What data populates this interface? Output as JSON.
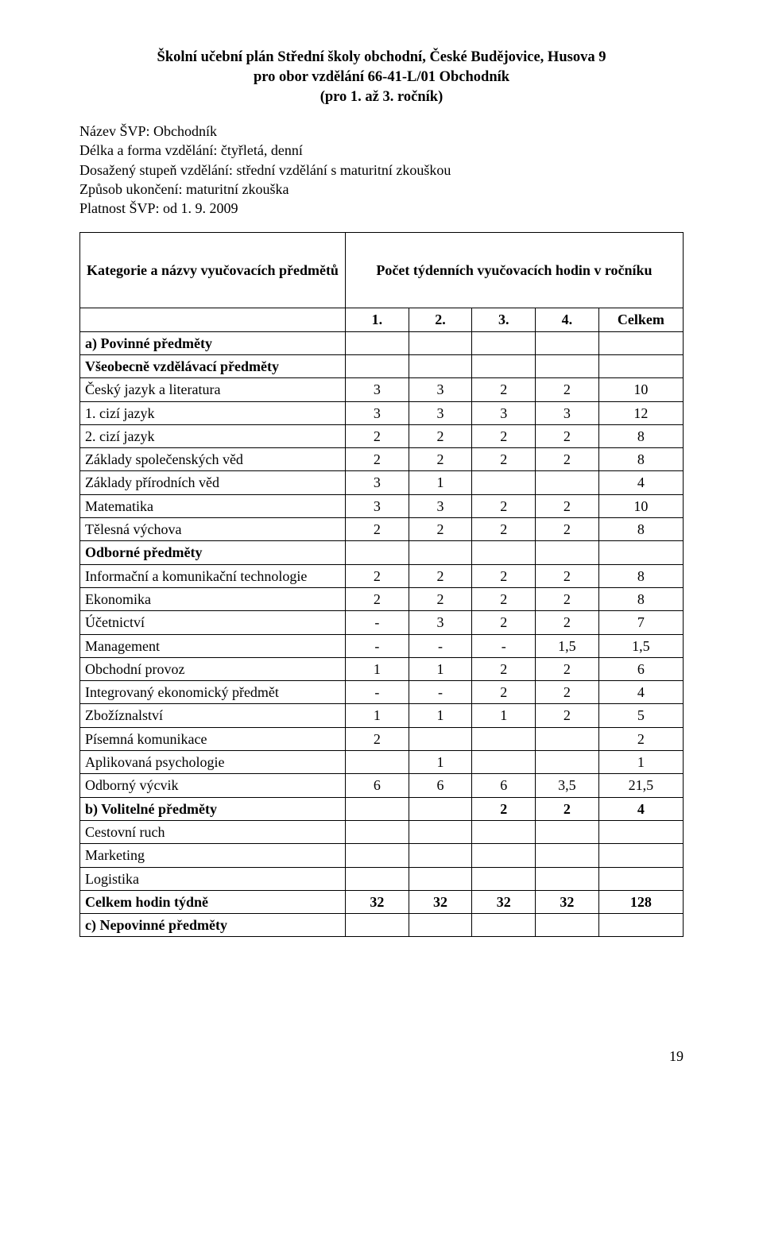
{
  "title": {
    "line1": "Školní učební plán Střední školy obchodní, České Budějovice, Husova 9",
    "line2": "pro obor vzdělání 66-41-L/01 Obchodník",
    "line3": "(pro 1. až 3. ročník)"
  },
  "meta": {
    "l1": "Název ŠVP: Obchodník",
    "l2": "Délka a forma vzdělání: čtyřletá, denní",
    "l3": "Dosažený stupeň vzdělání: střední vzdělání s maturitní zkouškou",
    "l4": "Způsob ukončení: maturitní zkouška",
    "l5": "Platnost ŠVP: od 1. 9. 2009"
  },
  "table": {
    "head_left": "Kategorie a názvy vyučovacích předmětů",
    "head_right": "Počet týdenních vyučovacích hodin v ročníku",
    "cols": {
      "c1": "1.",
      "c2": "2.",
      "c3": "3.",
      "c4": "4.",
      "c5": "Celkem"
    },
    "sections": {
      "a": "a) Povinné předměty",
      "gen": "Všeobecně vzdělávací předměty",
      "odb": "Odborné předměty",
      "b": "b) Volitelné předměty",
      "c": "c) Nepovinné předměty",
      "total": "Celkem hodin týdně"
    },
    "rows": {
      "cjl": {
        "label": "Český jazyk a literatura",
        "v": [
          "3",
          "3",
          "2",
          "2",
          "10"
        ]
      },
      "cj1": {
        "label": "1. cizí jazyk",
        "v": [
          "3",
          "3",
          "3",
          "3",
          "12"
        ]
      },
      "cj2": {
        "label": "2. cizí jazyk",
        "v": [
          "2",
          "2",
          "2",
          "2",
          "8"
        ]
      },
      "zsv": {
        "label": "Základy společenských věd",
        "v": [
          "2",
          "2",
          "2",
          "2",
          "8"
        ]
      },
      "zpv": {
        "label": "Základy přírodních věd",
        "v": [
          "3",
          "1",
          "",
          "",
          "4"
        ]
      },
      "mat": {
        "label": "Matematika",
        "v": [
          "3",
          "3",
          "2",
          "2",
          "10"
        ]
      },
      "tv": {
        "label": "Tělesná výchova",
        "v": [
          "2",
          "2",
          "2",
          "2",
          "8"
        ]
      },
      "ikt": {
        "label": "Informační a komunikační technologie",
        "v": [
          "2",
          "2",
          "2",
          "2",
          "8"
        ]
      },
      "eko": {
        "label": "Ekonomika",
        "v": [
          "2",
          "2",
          "2",
          "2",
          "8"
        ]
      },
      "uce": {
        "label": "Účetnictví",
        "v": [
          "-",
          "3",
          "2",
          "2",
          "7"
        ]
      },
      "man": {
        "label": "Management",
        "v": [
          "-",
          "-",
          "-",
          "1,5",
          "1,5"
        ]
      },
      "obp": {
        "label": "Obchodní provoz",
        "v": [
          "1",
          "1",
          "2",
          "2",
          "6"
        ]
      },
      "iep": {
        "label": "Integrovaný ekonomický předmět",
        "v": [
          "-",
          "-",
          "2",
          "2",
          "4"
        ]
      },
      "zbz": {
        "label": "Zbožíznalství",
        "v": [
          "1",
          "1",
          "1",
          "2",
          "5"
        ]
      },
      "pk": {
        "label": "Písemná komunikace",
        "v": [
          "2",
          "",
          "",
          "",
          "2"
        ]
      },
      "aps": {
        "label": "Aplikovaná psychologie",
        "v": [
          "",
          "1",
          "",
          "",
          "1"
        ]
      },
      "ov": {
        "label": "Odborný výcvik",
        "v": [
          "6",
          "6",
          "6",
          "3,5",
          "21,5"
        ]
      },
      "bvol": {
        "v": [
          "",
          "",
          "2",
          "2",
          "4"
        ]
      },
      "cr": {
        "label": "Cestovní ruch",
        "v": [
          "",
          "",
          "",
          "",
          ""
        ]
      },
      "mkt": {
        "label": "Marketing",
        "v": [
          "",
          "",
          "",
          "",
          ""
        ]
      },
      "log": {
        "label": "Logistika",
        "v": [
          "",
          "",
          "",
          "",
          ""
        ]
      },
      "total": {
        "v": [
          "32",
          "32",
          "32",
          "32",
          "128"
        ]
      }
    }
  },
  "page_number": "19"
}
